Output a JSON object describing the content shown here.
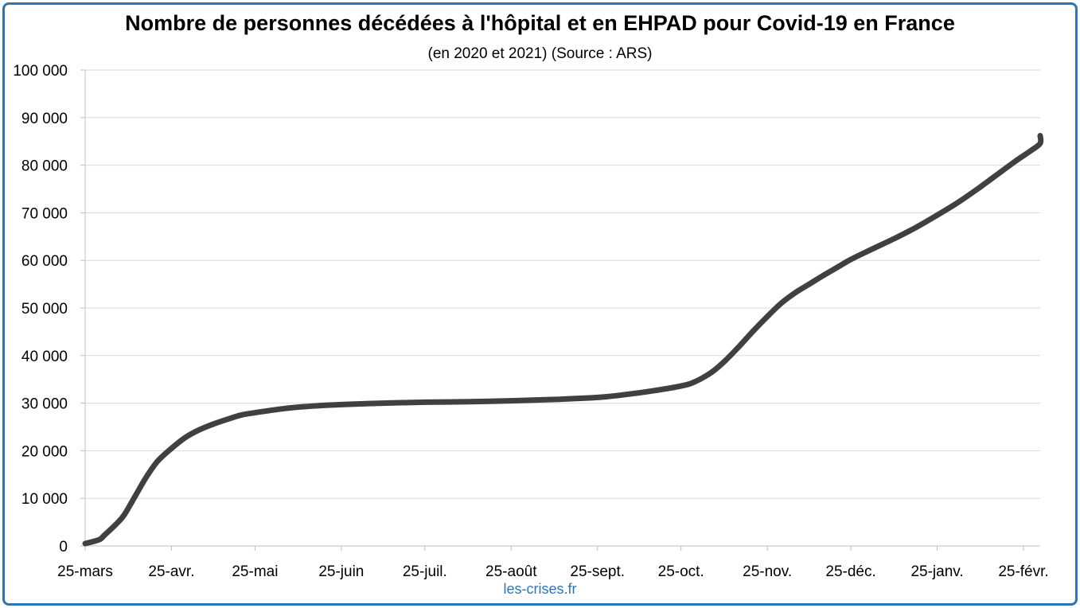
{
  "title": "Nombre de personnes décédées à l'hôpital et en EHPAD pour Covid-19 en France",
  "subtitle": "(en 2020 et 2021) (Source : ARS)",
  "source_label": "les-crises.fr",
  "colors": {
    "line": "#404040",
    "border": "#2f75b5",
    "grid": "#d9d9d9",
    "axis": "#bfbfbf"
  },
  "chart_data": {
    "type": "line",
    "title": "Nombre de personnes décédées à l'hôpital et en EHPAD pour Covid-19 en France",
    "subtitle": "(en 2020 et 2021) (Source : ARS)",
    "xlabel": "",
    "ylabel": "",
    "ylim": [
      0,
      100000
    ],
    "grid": true,
    "legend": "none",
    "x_tick_labels": [
      "25-mars",
      "25-avr.",
      "25-mai",
      "25-juin",
      "25-juil.",
      "25-août",
      "25-sept.",
      "25-oct.",
      "25-nov.",
      "25-déc.",
      "25-janv.",
      "25-févr."
    ],
    "x_tick_dates": [
      "2020-03-25",
      "2020-04-25",
      "2020-05-25",
      "2020-06-25",
      "2020-07-25",
      "2020-08-25",
      "2020-09-25",
      "2020-10-25",
      "2020-11-25",
      "2020-12-25",
      "2021-01-25",
      "2021-02-25"
    ],
    "xlim": [
      "2020-03-25",
      "2021-03-03"
    ],
    "y_ticks": [
      0,
      10000,
      20000,
      30000,
      40000,
      50000,
      60000,
      70000,
      80000,
      90000,
      100000
    ],
    "y_tick_labels": [
      "0",
      "10 000",
      "20 000",
      "30 000",
      "40 000",
      "50 000",
      "60 000",
      "70 000",
      "80 000",
      "90 000",
      "100 000"
    ],
    "series": [
      {
        "points": [
          [
            "2020-03-25",
            500
          ],
          [
            "2020-03-30",
            1300
          ],
          [
            "2020-04-01",
            2300
          ],
          [
            "2020-04-05",
            4500
          ],
          [
            "2020-04-08",
            6500
          ],
          [
            "2020-04-12",
            10500
          ],
          [
            "2020-04-16",
            14500
          ],
          [
            "2020-04-20",
            17800
          ],
          [
            "2020-04-25",
            20500
          ],
          [
            "2020-04-30",
            22800
          ],
          [
            "2020-05-05",
            24400
          ],
          [
            "2020-05-10",
            25600
          ],
          [
            "2020-05-15",
            26600
          ],
          [
            "2020-05-20",
            27500
          ],
          [
            "2020-05-25",
            28000
          ],
          [
            "2020-06-05",
            28900
          ],
          [
            "2020-06-15",
            29400
          ],
          [
            "2020-06-25",
            29700
          ],
          [
            "2020-07-10",
            30000
          ],
          [
            "2020-07-25",
            30200
          ],
          [
            "2020-08-10",
            30300
          ],
          [
            "2020-08-25",
            30500
          ],
          [
            "2020-09-10",
            30800
          ],
          [
            "2020-09-25",
            31200
          ],
          [
            "2020-10-05",
            31800
          ],
          [
            "2020-10-15",
            32600
          ],
          [
            "2020-10-25",
            33600
          ],
          [
            "2020-10-30",
            34500
          ],
          [
            "2020-11-05",
            36500
          ],
          [
            "2020-11-10",
            39000
          ],
          [
            "2020-11-15",
            42000
          ],
          [
            "2020-11-20",
            45200
          ],
          [
            "2020-11-25",
            48200
          ],
          [
            "2020-11-30",
            51000
          ],
          [
            "2020-12-05",
            53200
          ],
          [
            "2020-12-10",
            55000
          ],
          [
            "2020-12-15",
            56800
          ],
          [
            "2020-12-20",
            58500
          ],
          [
            "2020-12-25",
            60200
          ],
          [
            "2021-01-01",
            62200
          ],
          [
            "2021-01-10",
            64700
          ],
          [
            "2021-01-17",
            66800
          ],
          [
            "2021-01-25",
            69500
          ],
          [
            "2021-02-01",
            72000
          ],
          [
            "2021-02-08",
            74800
          ],
          [
            "2021-02-15",
            77800
          ],
          [
            "2021-02-22",
            80800
          ],
          [
            "2021-02-28",
            83200
          ],
          [
            "2021-03-03",
            84600
          ],
          [
            "2021-03-06",
            86200
          ]
        ]
      }
    ]
  }
}
